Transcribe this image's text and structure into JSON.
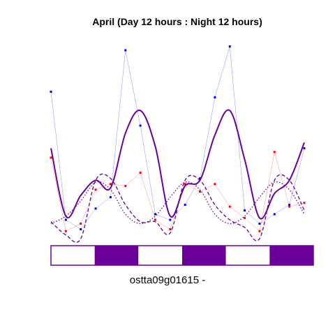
{
  "chart_data": {
    "type": "line",
    "title": "April (Day 12 hours : Night 12 hours)",
    "gene_label": "ostta09g01615 -",
    "x": [
      0,
      4,
      8,
      12,
      16,
      20,
      24,
      28,
      32,
      36,
      40,
      44,
      48,
      52,
      56,
      60,
      64,
      68
    ],
    "xlim": [
      0,
      68
    ],
    "ylim": [
      0,
      1
    ],
    "series": [
      {
        "color": "#0000ff",
        "style": "points+thin-line",
        "values": [
          0.78,
          0.1,
          0.05,
          0.16,
          0.22,
          1.0,
          0.6,
          0.13,
          0.1,
          0.18,
          0.32,
          0.75,
          1.02,
          0.15,
          0.08,
          0.13,
          0.18,
          0.48
        ]
      },
      {
        "color": "#ff0000",
        "style": "points+thin-line",
        "values": [
          0.43,
          0.04,
          0.08,
          0.26,
          0.29,
          0.28,
          0.35,
          0.1,
          0.05,
          0.29,
          0.25,
          0.29,
          0.17,
          0.11,
          0.04,
          0.46,
          0.17,
          0.19
        ]
      },
      {
        "color": "#6a0098",
        "style": "thick-fitted-curve",
        "values": [
          0.48,
          0.12,
          0.23,
          0.31,
          0.27,
          0.56,
          0.68,
          0.49,
          0.12,
          0.28,
          0.31,
          0.55,
          0.68,
          0.42,
          0.11,
          0.24,
          0.31,
          0.51
        ]
      },
      {
        "color": "#6a0098",
        "style": "dashed-curve",
        "values": [
          0.09,
          0.02,
          0.0,
          0.31,
          0.32,
          0.18,
          0.09,
          0.09,
          0.03,
          0.31,
          0.31,
          0.18,
          0.1,
          0.06,
          0.0,
          0.31,
          0.31,
          0.15
        ]
      },
      {
        "color": "#6a0098",
        "style": "dotted-curve",
        "values": [
          0.08,
          0.12,
          0.2,
          0.3,
          0.26,
          0.13,
          0.08,
          0.12,
          0.22,
          0.3,
          0.26,
          0.13,
          0.08,
          0.12,
          0.22,
          0.3,
          0.26,
          0.13
        ]
      }
    ],
    "light_dark_bar": [
      "day",
      "night",
      "day",
      "night",
      "day",
      "night"
    ],
    "colors": {
      "day": "#ffffff",
      "night": "#6a0098",
      "bar_border": "#6a0098"
    }
  }
}
